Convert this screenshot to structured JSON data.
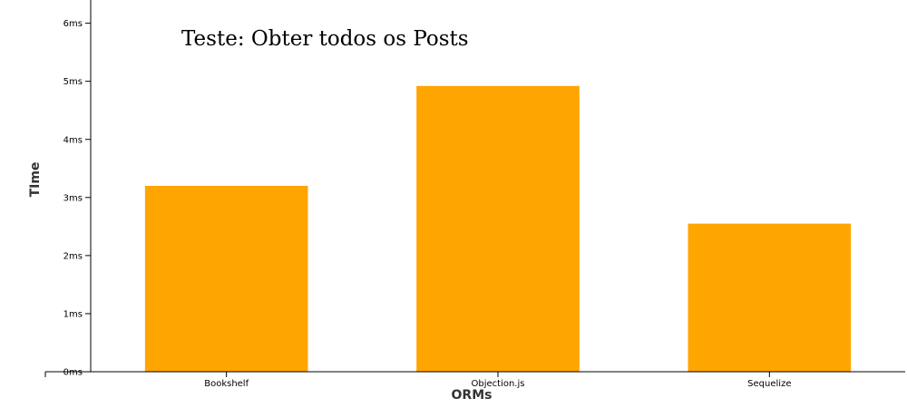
{
  "chart_data": {
    "type": "bar",
    "title": "Teste: Obter todos os Posts",
    "xlabel": "ORMs",
    "ylabel": "TIme",
    "categories": [
      "Bookshelf",
      "Objection.js",
      "Sequelize"
    ],
    "values": [
      3.2,
      4.92,
      2.55
    ],
    "y_ticks": [
      0,
      1,
      2,
      3,
      4,
      5,
      6
    ],
    "y_tick_labels": [
      "0ms",
      "1ms",
      "2ms",
      "3ms",
      "4ms",
      "5ms",
      "6ms"
    ],
    "ylim": [
      0,
      6.4
    ],
    "grid": false,
    "legend": "none",
    "bar_color": "#FFA500",
    "axis_color": "#000000"
  }
}
